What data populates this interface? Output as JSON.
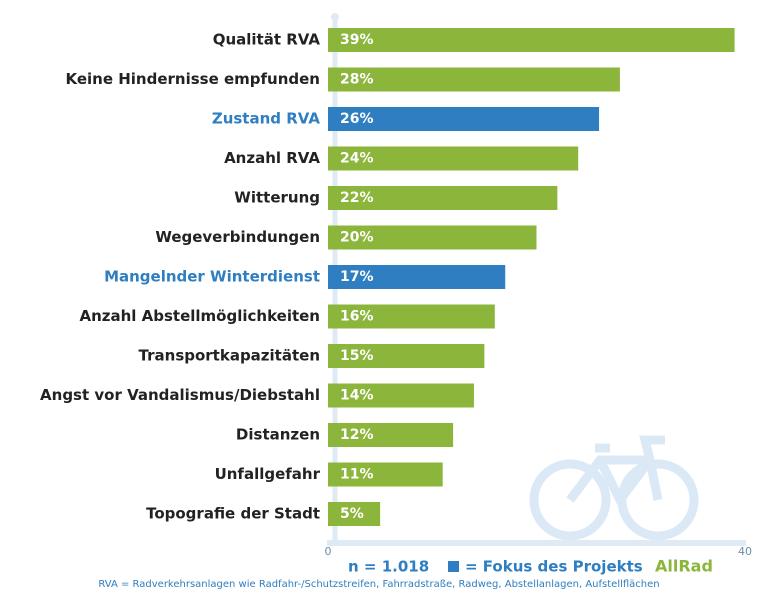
{
  "chart_data": {
    "type": "hbar",
    "categories": [
      "Qualität RVA",
      "Keine Hindernisse empfunden",
      "Zustand RVA",
      "Anzahl RVA",
      "Witterung",
      "Wegeverbindungen",
      "Mangelnder Winterdienst",
      "Anzahl Abstellmöglichkeiten",
      "Transportkapazitäten",
      "Angst vor Vandalismus/Diebstahl",
      "Distanzen",
      "Unfallgefahr",
      "Topografie der Stadt"
    ],
    "values": [
      39,
      28,
      26,
      24,
      22,
      20,
      17,
      16,
      15,
      14,
      12,
      11,
      5
    ],
    "value_labels": [
      "39%",
      "28%",
      "26%",
      "24%",
      "22%",
      "20%",
      "17%",
      "16%",
      "15%",
      "14%",
      "12%",
      "11%",
      "5%"
    ],
    "colors": [
      "#8bb53b",
      "#8bb53b",
      "#2e7ec1",
      "#8bb53b",
      "#8bb53b",
      "#8bb53b",
      "#2e7ec1",
      "#8bb53b",
      "#8bb53b",
      "#8bb53b",
      "#8bb53b",
      "#8bb53b",
      "#8bb53b"
    ],
    "xlim": [
      0,
      40
    ],
    "xticks": [
      0,
      40
    ],
    "sample_note": "n = 1.018",
    "legend": {
      "label": "= Fokus des Projekts",
      "marker_color": "#2e7ec1"
    },
    "project": "AllRad",
    "footnote": "RVA = Radverkehrsanlagen wie Radfahr-/Schutzstreifen, Fahrradstraße, Radweg, Abstellanlagen, Aufstellflächen"
  }
}
